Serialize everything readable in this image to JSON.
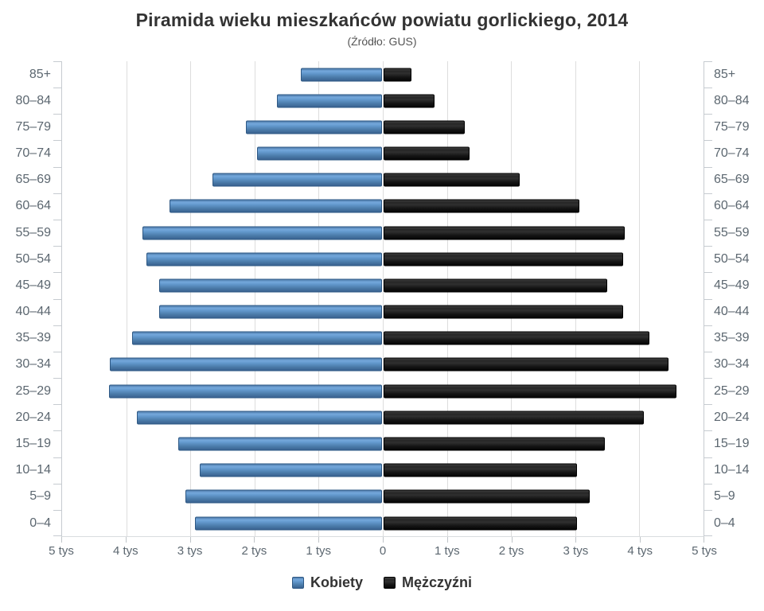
{
  "title": "Piramida wieku mieszkańców powiatu gorlickiego, 2014",
  "subtitle": "(Źródło: GUS)",
  "colors": {
    "female": "#4a80b4",
    "male": "#1a1a1a",
    "axis_label": "#5c6770",
    "gridline": "#dddddd",
    "axis_line": "#c6cbd0",
    "title": "#333333"
  },
  "legend": [
    {
      "label": "Kobiety",
      "series_key": "female"
    },
    {
      "label": "Mężczyźni",
      "series_key": "male"
    }
  ],
  "chart_data": {
    "type": "bar",
    "variant": "population-pyramid",
    "title": "Piramida wieku mieszkańców powiatu gorlickiego, 2014",
    "subtitle": "(Źródło: GUS)",
    "categories": [
      "85+",
      "80–84",
      "75–79",
      "70–74",
      "65–69",
      "60–64",
      "55–59",
      "50–54",
      "45–49",
      "40–44",
      "35–39",
      "30–34",
      "25–29",
      "20–24",
      "15–19",
      "10–14",
      "5–9",
      "0–4"
    ],
    "series": [
      {
        "name": "Kobiety",
        "side": "left",
        "color": "#4a80b4",
        "values": [
          1260,
          1640,
          2120,
          1950,
          2640,
          3310,
          3740,
          3670,
          3470,
          3470,
          3890,
          4240,
          4260,
          3820,
          3180,
          2840,
          3070,
          2920
        ]
      },
      {
        "name": "Mężczyźni",
        "side": "right",
        "color": "#1a1a1a",
        "values": [
          430,
          790,
          1270,
          1340,
          2120,
          3050,
          3760,
          3740,
          3490,
          3740,
          4140,
          4440,
          4570,
          4060,
          3450,
          3010,
          3210,
          3010
        ]
      }
    ],
    "x_axis": {
      "max_each_side": 5000,
      "tick_interval": 1000,
      "unit": "tys",
      "tick_labels": [
        "5 tys",
        "4 tys",
        "3 tys",
        "2 tys",
        "1 tys",
        "0",
        "1 tys",
        "2 tys",
        "3 tys",
        "4 tys",
        "5 tys"
      ]
    },
    "grid": true,
    "legend_position": "bottom"
  }
}
